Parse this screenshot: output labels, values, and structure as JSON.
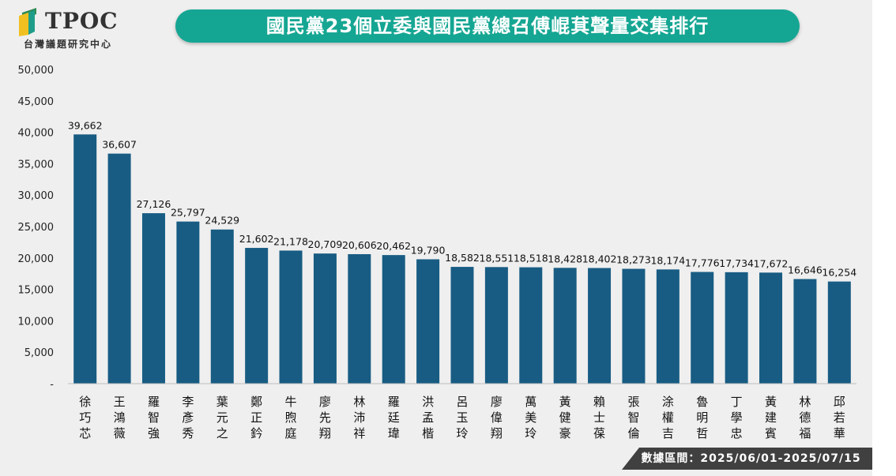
{
  "brand": {
    "logo_text": "TPOC",
    "logo_subtitle": "台灣議題研究中心"
  },
  "header": {
    "title": "國民黨23個立委與國民黨總召傅崐萁聲量交集排行"
  },
  "footer": {
    "data_range": "數據區間：2025/06/01-2025/07/15"
  },
  "colors": {
    "bar": "#185c83",
    "title_bg": "#15a693",
    "footer_bg": "#404040"
  },
  "chart_data": {
    "type": "bar",
    "categories": [
      "徐巧芯",
      "王鴻薇",
      "羅智強",
      "李彥秀",
      "葉元之",
      "鄭正鈐",
      "牛煦庭",
      "廖先翔",
      "林沛祥",
      "羅廷瑋",
      "洪孟楷",
      "呂玉玲",
      "廖偉翔",
      "萬美玲",
      "黃健豪",
      "賴士葆",
      "張智倫",
      "涂權吉",
      "魯明哲",
      "丁學忠",
      "黃建賓",
      "林德福",
      "邱若華"
    ],
    "values": [
      39662,
      36607,
      27126,
      25797,
      24529,
      21602,
      21178,
      20709,
      20606,
      20462,
      19790,
      18582,
      18551,
      18518,
      18428,
      18402,
      18273,
      18174,
      17776,
      17734,
      17672,
      16646,
      16254
    ],
    "data_labels": [
      "39,662",
      "36,607",
      "27,126",
      "25,797",
      "24,529",
      "21,602",
      "21,178",
      "20,709",
      "20,606",
      "20,462",
      "19,790",
      "18,582",
      "18,551",
      "18,518",
      "18,428",
      "18,402",
      "18,273",
      "18,174",
      "17,776",
      "17,734",
      "17,672",
      "16,646",
      "16,254"
    ],
    "yticks": [
      "-",
      "5,000",
      "10,000",
      "15,000",
      "20,000",
      "25,000",
      "30,000",
      "35,000",
      "40,000",
      "45,000",
      "50,000"
    ],
    "ylim": [
      0,
      50000
    ],
    "grid": false,
    "title": "國民黨23個立委與國民黨總召傅崐萁聲量交集排行"
  }
}
